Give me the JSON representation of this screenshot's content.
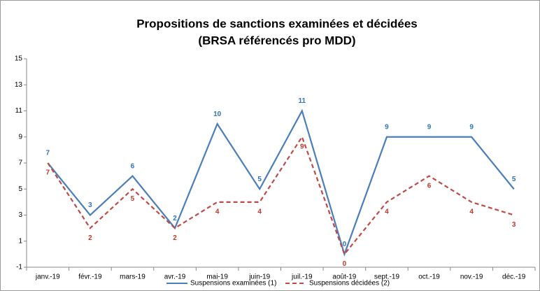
{
  "chart_data": {
    "type": "line",
    "title": "Propositions de sanctions examinées et décidées",
    "subtitle": "(BRSA référencés pro MDD)",
    "categories": [
      "janv.-19",
      "févr.-19",
      "mars-19",
      "avr.-19",
      "mai-19",
      "juin-19",
      "juil.-19",
      "août-19",
      "sept.-19",
      "oct.-19",
      "nov.-19",
      "déc.-19"
    ],
    "series": [
      {
        "name": "Suspensions examinées (1)",
        "color": "#4a7ebb",
        "label_color": "#2e75b6",
        "dashed": false,
        "values": [
          7,
          3,
          6,
          2,
          10,
          5,
          11,
          0,
          9,
          9,
          9,
          5
        ]
      },
      {
        "name": "Suspensions décidées (2)",
        "color": "#be4b48",
        "label_color": "#c0392b",
        "dashed": true,
        "values": [
          7,
          2,
          5,
          2,
          4,
          4,
          9,
          0,
          4,
          6,
          4,
          3
        ]
      }
    ],
    "ylim": [
      -1,
      15
    ],
    "yticks": [
      -1,
      1,
      3,
      5,
      7,
      9,
      11,
      13,
      15
    ],
    "grid": false,
    "legend": "bottom"
  }
}
